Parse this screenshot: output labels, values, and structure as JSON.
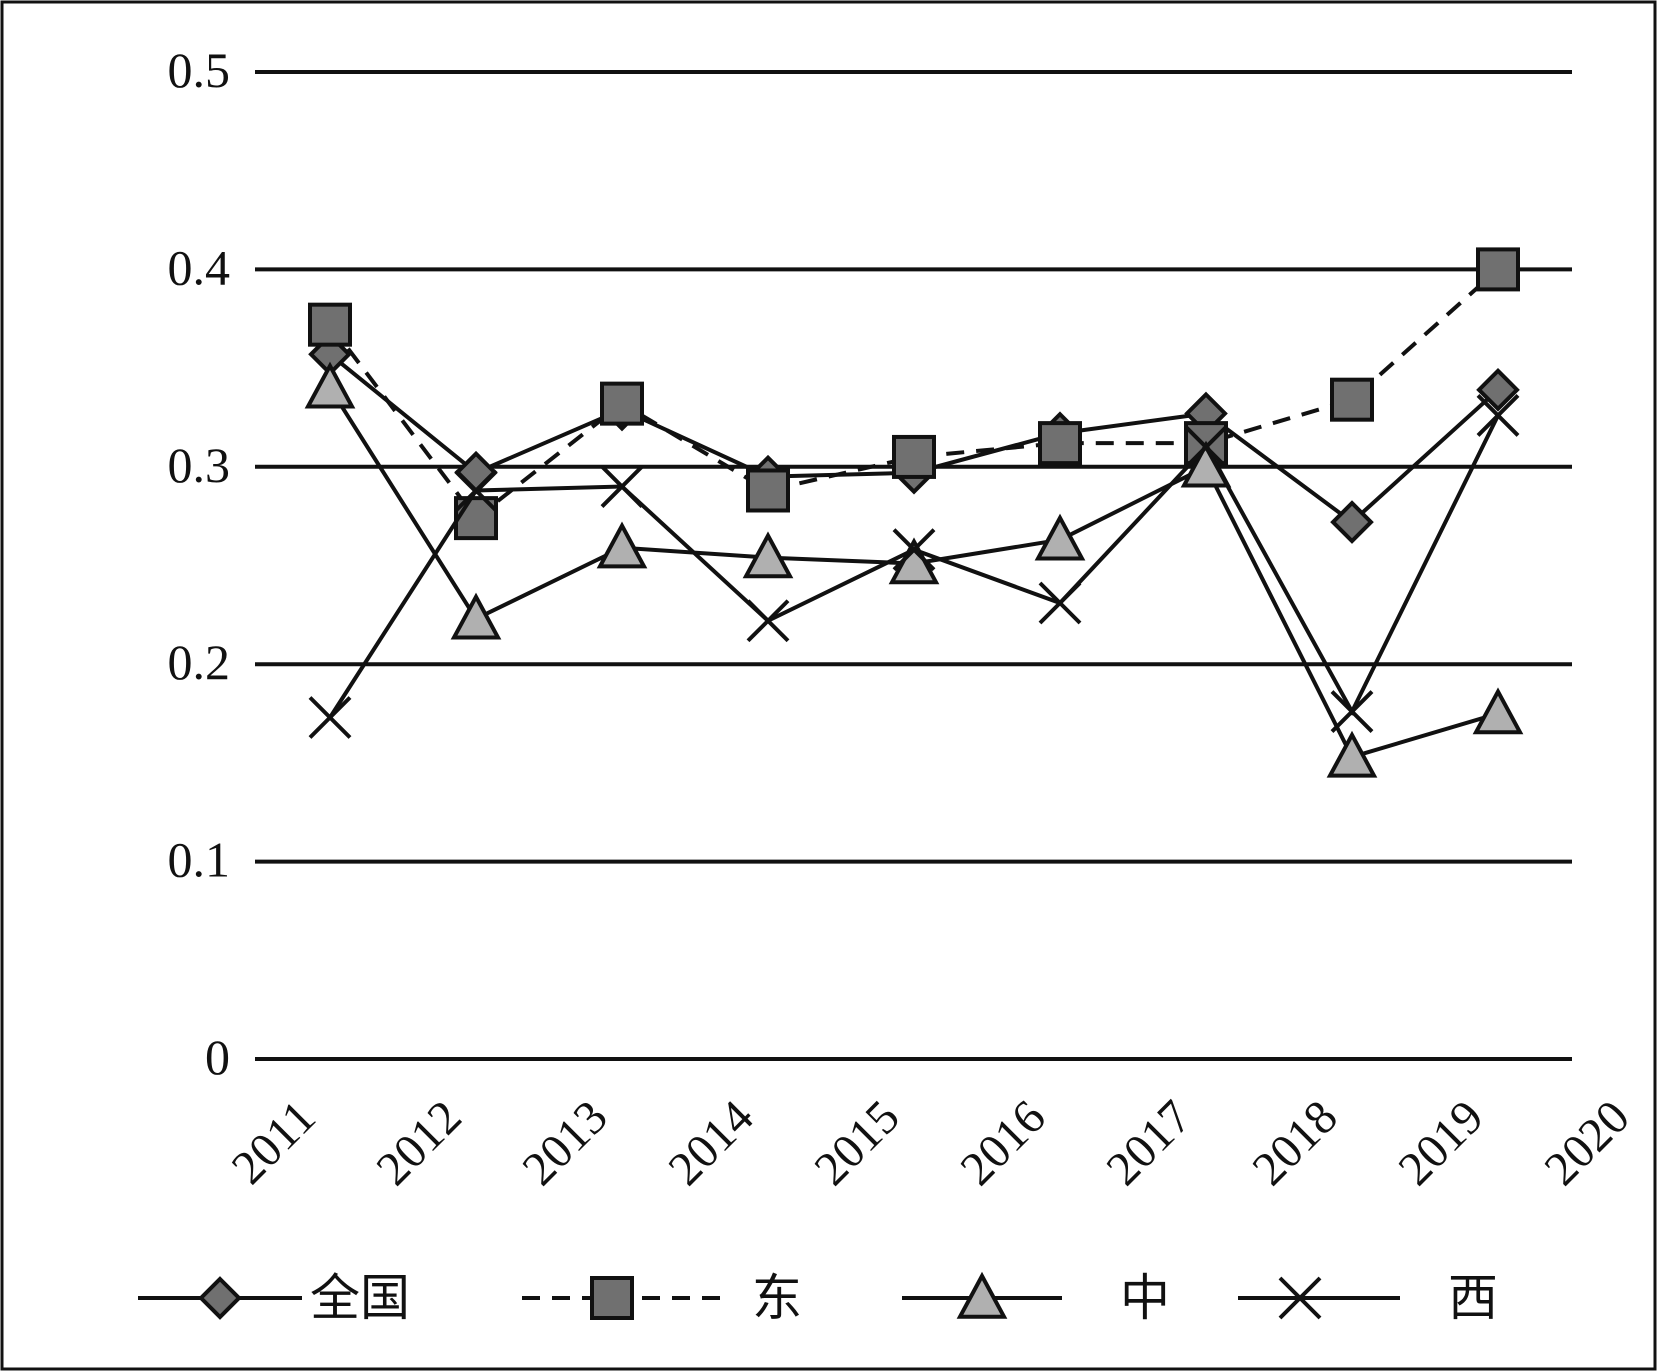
{
  "chart_data": {
    "type": "line",
    "categories": [
      "2011",
      "2012",
      "2013",
      "2014",
      "2015",
      "2016",
      "2017",
      "2018",
      "2019",
      "2020"
    ],
    "ylim": [
      0,
      0.5
    ],
    "y_ticks": [
      "0",
      "0.1",
      "0.2",
      "0.3",
      "0.4",
      "0.5"
    ],
    "grid": "horizontal",
    "legend_position": "bottom",
    "series": [
      {
        "name": "全国",
        "marker": "diamond",
        "dash": "solid",
        "fill": "#707070",
        "values": [
          0.357,
          0.297,
          0.329,
          0.295,
          0.297,
          0.317,
          0.327,
          0.272,
          0.339,
          null
        ]
      },
      {
        "name": "东",
        "marker": "square",
        "dash": "dashed",
        "fill": "#707070",
        "values": [
          0.372,
          0.274,
          0.332,
          0.288,
          0.305,
          0.312,
          0.312,
          0.334,
          0.4,
          null
        ]
      },
      {
        "name": "中",
        "marker": "triangle",
        "dash": "solid",
        "fill": "#b0b0b0",
        "values": [
          0.34,
          0.223,
          0.259,
          0.254,
          0.251,
          0.263,
          0.3,
          0.153,
          0.175,
          null
        ]
      },
      {
        "name": "西",
        "marker": "x",
        "dash": "solid",
        "fill": "none",
        "values": [
          0.173,
          0.288,
          0.29,
          0.222,
          0.258,
          0.231,
          0.31,
          0.176,
          0.326,
          null
        ]
      }
    ]
  }
}
